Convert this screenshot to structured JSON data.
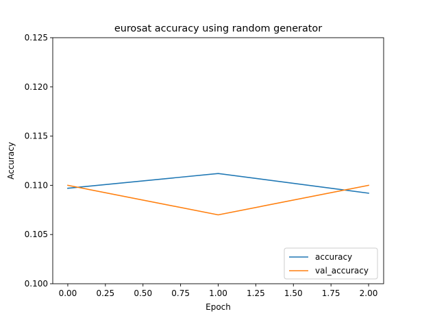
{
  "chart_data": {
    "type": "line",
    "title": "eurosat accuracy using random generator",
    "xlabel": "Epoch",
    "ylabel": "Accuracy",
    "x": [
      0.0,
      1.0,
      2.0
    ],
    "xlim": [
      -0.1,
      2.1
    ],
    "ylim": [
      0.1,
      0.125
    ],
    "xticks": [
      0.0,
      0.25,
      0.5,
      0.75,
      1.0,
      1.25,
      1.5,
      1.75,
      2.0
    ],
    "xtick_labels": [
      "0.00",
      "0.25",
      "0.50",
      "0.75",
      "1.00",
      "1.25",
      "1.50",
      "1.75",
      "2.00"
    ],
    "yticks": [
      0.1,
      0.105,
      0.11,
      0.115,
      0.12,
      0.125
    ],
    "ytick_labels": [
      "0.100",
      "0.105",
      "0.110",
      "0.115",
      "0.120",
      "0.125"
    ],
    "series": [
      {
        "name": "accuracy",
        "color": "#1f77b4",
        "values": [
          0.1097,
          0.1112,
          0.1092
        ]
      },
      {
        "name": "val_accuracy",
        "color": "#ff7f0e",
        "values": [
          0.11,
          0.107,
          0.11
        ]
      }
    ],
    "legend": "lower-right",
    "grid": false
  }
}
